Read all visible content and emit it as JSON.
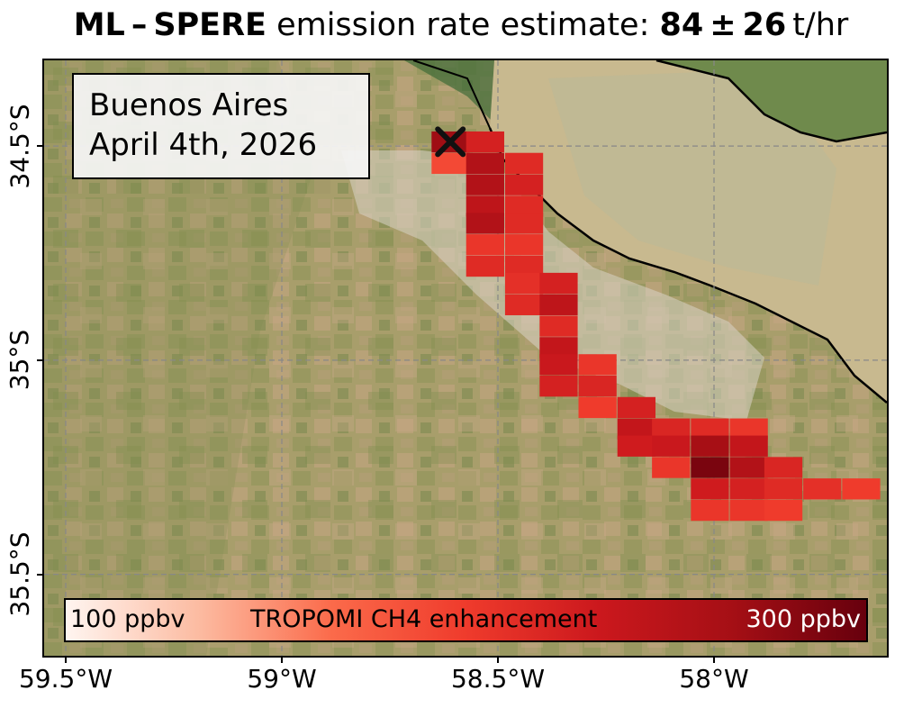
{
  "title": {
    "method": "ML – SPERE",
    "text": " emission rate estimate: ",
    "value": "84 ± 26",
    "unit": " t/hr"
  },
  "label_box": {
    "location": "Buenos Aires",
    "date": "April 4th, 2026"
  },
  "colorbar": {
    "min_label": "100 ppbv",
    "title": "TROPOMI CH4 enhancement",
    "max_label": "300 ppbv",
    "min": 100,
    "max": 300,
    "colors": [
      "#fff5f0",
      "#fcbba1",
      "#fb6a4a",
      "#ef3b2c",
      "#cb181d",
      "#a50f15",
      "#67000d"
    ]
  },
  "axes": {
    "x_ticks": [
      {
        "lon": -59.5,
        "label": "59.5°W"
      },
      {
        "lon": -59.0,
        "label": "59°W"
      },
      {
        "lon": -58.5,
        "label": "58.5°W"
      },
      {
        "lon": -58.0,
        "label": "58°W"
      }
    ],
    "y_ticks": [
      {
        "lat": -34.5,
        "label": "34.5°S"
      },
      {
        "lat": -35.0,
        "label": "35°S"
      },
      {
        "lat": -35.5,
        "label": "35.5°S"
      }
    ],
    "lon_range": [
      -59.55,
      -57.6
    ],
    "lat_range": [
      -34.3,
      -35.69
    ],
    "grid": true
  },
  "source": {
    "marker": "x",
    "lon": -58.61,
    "lat": -34.49
  },
  "plume_cells": [
    [
      -58.61,
      -34.49,
      270
    ],
    [
      -58.53,
      -34.49,
      225
    ],
    [
      -58.61,
      -34.54,
      190
    ],
    [
      -58.53,
      -34.54,
      255
    ],
    [
      -58.44,
      -34.54,
      215
    ],
    [
      -58.53,
      -34.59,
      255
    ],
    [
      -58.44,
      -34.59,
      225
    ],
    [
      -58.53,
      -34.64,
      245
    ],
    [
      -58.44,
      -34.64,
      215
    ],
    [
      -58.53,
      -34.68,
      255
    ],
    [
      -58.44,
      -34.68,
      215
    ],
    [
      -58.53,
      -34.73,
      205
    ],
    [
      -58.44,
      -34.73,
      205
    ],
    [
      -58.53,
      -34.78,
      215
    ],
    [
      -58.44,
      -34.78,
      215
    ],
    [
      -58.44,
      -34.82,
      210
    ],
    [
      -58.36,
      -34.82,
      225
    ],
    [
      -58.44,
      -34.87,
      215
    ],
    [
      -58.36,
      -34.87,
      245
    ],
    [
      -58.36,
      -34.92,
      215
    ],
    [
      -58.36,
      -34.97,
      240
    ],
    [
      -58.36,
      -35.01,
      235
    ],
    [
      -58.27,
      -35.01,
      205
    ],
    [
      -58.36,
      -35.06,
      225
    ],
    [
      -58.27,
      -35.06,
      220
    ],
    [
      -58.27,
      -35.11,
      200
    ],
    [
      -58.18,
      -35.11,
      225
    ],
    [
      -58.18,
      -35.16,
      240
    ],
    [
      -58.1,
      -35.16,
      220
    ],
    [
      -58.01,
      -35.16,
      215
    ],
    [
      -57.92,
      -35.16,
      205
    ],
    [
      -58.18,
      -35.2,
      230
    ],
    [
      -58.1,
      -35.2,
      235
    ],
    [
      -58.01,
      -35.2,
      265
    ],
    [
      -57.92,
      -35.2,
      240
    ],
    [
      -58.1,
      -35.25,
      205
    ],
    [
      -58.01,
      -35.25,
      290
    ],
    [
      -57.92,
      -35.25,
      255
    ],
    [
      -57.84,
      -35.25,
      220
    ],
    [
      -58.01,
      -35.3,
      230
    ],
    [
      -57.92,
      -35.3,
      225
    ],
    [
      -57.84,
      -35.3,
      215
    ],
    [
      -57.75,
      -35.3,
      210
    ],
    [
      -57.66,
      -35.3,
      200
    ],
    [
      -58.01,
      -35.35,
      205
    ],
    [
      -57.92,
      -35.35,
      205
    ],
    [
      -57.84,
      -35.35,
      200
    ]
  ]
}
